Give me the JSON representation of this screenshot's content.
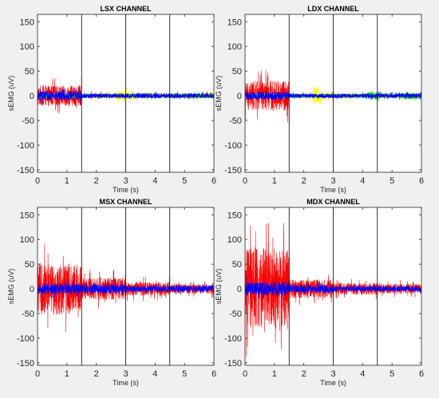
{
  "chart_data": [
    {
      "type": "line",
      "title": "LSX CHANNEL",
      "xlabel": "Time (s)",
      "ylabel": "sEMG (uV)",
      "xlim": [
        0,
        6
      ],
      "ylim": [
        -155,
        165
      ],
      "xticks": [
        "0",
        "1",
        "2",
        "3",
        "4",
        "5",
        "6"
      ],
      "yticks": [
        "-150",
        "-100",
        "-50",
        "0",
        "50",
        "100",
        "150"
      ],
      "phase_markers_s": [
        1.5,
        3,
        4.5
      ],
      "series": [
        {
          "color": "#ff0000",
          "envelope": [
            [
              0,
              1.5,
              38
            ],
            [
              1.5,
              6,
              7
            ]
          ]
        },
        {
          "color": "#ffff00",
          "envelope": [
            [
              0,
              1.5,
              8
            ],
            [
              1.5,
              6,
              7
            ],
            [
              2.0,
              2.4,
              10
            ],
            [
              2.7,
              3.3,
              18
            ],
            [
              3.5,
              4.0,
              8
            ]
          ]
        },
        {
          "color": "#00d000",
          "envelope": [
            [
              0,
              1.5,
              6
            ],
            [
              1.5,
              6,
              6
            ],
            [
              5.0,
              6,
              9
            ]
          ]
        },
        {
          "color": "#0000ff",
          "envelope": [
            [
              0,
              1.5,
              17
            ],
            [
              1.5,
              6,
              9
            ]
          ]
        }
      ]
    },
    {
      "type": "line",
      "title": "LDX CHANNEL",
      "xlabel": "Time (s)",
      "ylabel": "sEMG (uV)",
      "xlim": [
        0,
        6
      ],
      "ylim": [
        -155,
        165
      ],
      "xticks": [
        "0",
        "1",
        "2",
        "3",
        "4",
        "5",
        "6"
      ],
      "yticks": [
        "-150",
        "-100",
        "-50",
        "0",
        "50",
        "100",
        "150"
      ],
      "phase_markers_s": [
        1.5,
        3,
        4.5
      ],
      "series": [
        {
          "color": "#ff0000",
          "envelope": [
            [
              0,
              1.5,
              55
            ],
            [
              1.5,
              6,
              6
            ]
          ]
        },
        {
          "color": "#ffff00",
          "envelope": [
            [
              0,
              1.5,
              8
            ],
            [
              1.5,
              6,
              6
            ],
            [
              2.3,
              2.6,
              35
            ],
            [
              2.6,
              3.0,
              15
            ]
          ]
        },
        {
          "color": "#00d000",
          "envelope": [
            [
              0,
              1.5,
              5
            ],
            [
              1.5,
              6,
              7
            ],
            [
              4.1,
              4.6,
              14
            ],
            [
              5.3,
              6.0,
              12
            ]
          ]
        },
        {
          "color": "#0000ff",
          "envelope": [
            [
              0,
              1.5,
              15
            ],
            [
              1.5,
              6,
              8
            ]
          ]
        }
      ]
    },
    {
      "type": "line",
      "title": "MSX CHANNEL",
      "xlabel": "Time (s)",
      "ylabel": "sEMG (uV)",
      "xlim": [
        0,
        6
      ],
      "ylim": [
        -155,
        165
      ],
      "xticks": [
        "0",
        "1",
        "2",
        "3",
        "4",
        "5",
        "6"
      ],
      "yticks": [
        "-150",
        "-100",
        "-50",
        "0",
        "50",
        "100",
        "150"
      ],
      "phase_markers_s": [
        1.5,
        3,
        4.5
      ],
      "series": [
        {
          "color": "#ff0000",
          "envelope": [
            [
              0,
              1.5,
              95
            ],
            [
              1.5,
              3,
              40
            ],
            [
              3,
              4.5,
              25
            ],
            [
              4.5,
              6,
              18
            ]
          ]
        },
        {
          "color": "#0000ff",
          "envelope": [
            [
              0,
              1.5,
              20
            ],
            [
              1.5,
              3,
              18
            ],
            [
              3,
              6,
              12
            ]
          ]
        }
      ]
    },
    {
      "type": "line",
      "title": "MDX CHANNEL",
      "xlabel": "Time (s)",
      "ylabel": "sEMG (uV)",
      "xlim": [
        0,
        6
      ],
      "ylim": [
        -155,
        165
      ],
      "xticks": [
        "0",
        "1",
        "2",
        "3",
        "4",
        "5",
        "6"
      ],
      "yticks": [
        "-150",
        "-100",
        "-50",
        "0",
        "50",
        "100",
        "150"
      ],
      "phase_markers_s": [
        1.5,
        3,
        4.5
      ],
      "series": [
        {
          "color": "#ff0000",
          "envelope": [
            [
              0,
              1.5,
              150
            ],
            [
              1.5,
              3,
              35
            ],
            [
              3,
              4.5,
              22
            ],
            [
              4.5,
              6,
              18
            ]
          ]
        },
        {
          "color": "#0000ff",
          "envelope": [
            [
              0,
              1.5,
              25
            ],
            [
              1.5,
              3,
              15
            ],
            [
              3,
              6,
              10
            ]
          ]
        }
      ]
    }
  ]
}
